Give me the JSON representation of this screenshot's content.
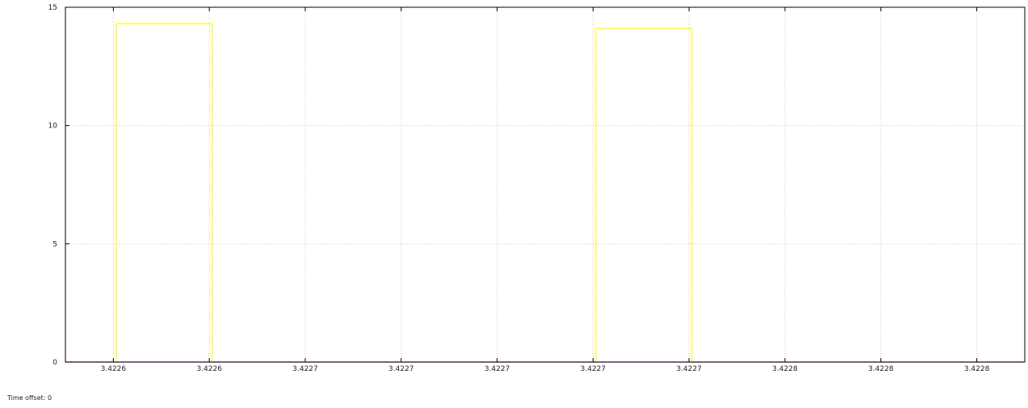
{
  "footer": {
    "time_offset_label": "Time offset:",
    "time_offset_value": "0"
  },
  "chart_data": {
    "type": "line",
    "title": "",
    "xlabel": "",
    "ylabel": "",
    "ylim": [
      0,
      15
    ],
    "yticks": [
      0,
      5,
      10,
      15
    ],
    "x_tick_labels": [
      "3.4226",
      "3.4226",
      "3.4227",
      "3.4227",
      "3.4227",
      "3.4227",
      "3.4227",
      "3.4228",
      "3.4228",
      "3.4228"
    ],
    "grid": true,
    "legend": "none",
    "series": [
      {
        "color": "#ffff00",
        "x": [
          0,
          0.53,
          0.53,
          1.53,
          1.53,
          5.53,
          5.53,
          6.53,
          6.53,
          10
        ],
        "y": [
          0,
          0,
          14.3,
          14.3,
          0,
          0,
          14.1,
          14.1,
          0,
          0
        ]
      },
      {
        "color": "#ff00ff",
        "x": [
          0,
          10
        ],
        "y": [
          0,
          0
        ]
      }
    ],
    "colors": {
      "background": "#ffffff",
      "axis": "#000000",
      "grid": "#cccccc"
    }
  }
}
